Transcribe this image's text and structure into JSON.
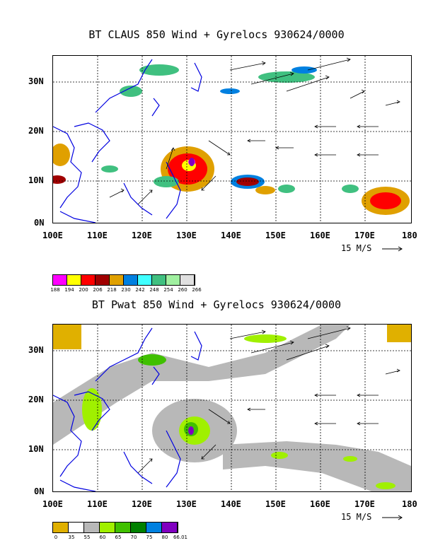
{
  "panel1": {
    "title": "BT CLAUS 850 Wind + Gyrelocs 930624/0000",
    "lat_labels": [
      "30N",
      "20N",
      "10N",
      "0N"
    ],
    "lon_labels": [
      "100E",
      "110E",
      "120E",
      "130E",
      "140E",
      "150E",
      "160E",
      "170E",
      "180"
    ],
    "scale_label": "15 M/S",
    "colorbar_labels": [
      "188",
      "194",
      "200",
      "206",
      "218",
      "230",
      "242",
      "248",
      "254",
      "260",
      "266"
    ],
    "colorbar_colors": [
      "#ff00ff",
      "#ffff00",
      "#ff0000",
      "#a00000",
      "#e0a000",
      "#0080e0",
      "#40ffff",
      "#40c080",
      "#a0f0a0",
      "#e0e0e0"
    ]
  },
  "panel2": {
    "title": "BT Pwat 850 Wind + Gyrelocs 930624/0000",
    "lat_labels": [
      "30N",
      "20N",
      "10N",
      "0N"
    ],
    "lon_labels": [
      "100E",
      "110E",
      "120E",
      "130E",
      "140E",
      "150E",
      "160E",
      "170E",
      "180"
    ],
    "scale_label": "15 M/S",
    "colorbar_labels": [
      "0",
      "35",
      "55",
      "60",
      "65",
      "70",
      "75",
      "80",
      "66.01"
    ],
    "colorbar_colors": [
      "#e0b000",
      "#ffffff",
      "#b8b8b8",
      "#a0f000",
      "#40c000",
      "#008000",
      "#0080e0",
      "#8000c0"
    ]
  }
}
